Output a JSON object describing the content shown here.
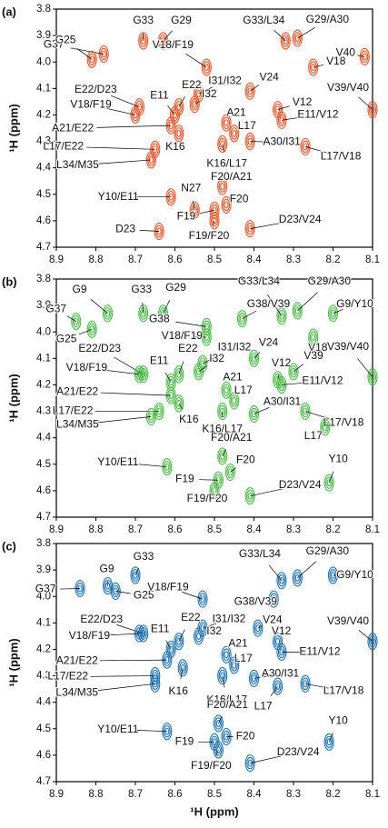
{
  "chart_data": [
    {
      "type": "contour",
      "panel": "(a)",
      "ylabel": "¹H (ppm)",
      "color": "#e4552b",
      "xlim": [
        8.9,
        8.1
      ],
      "ylim": [
        4.7,
        3.8
      ],
      "xticks": [
        8.9,
        8.8,
        8.7,
        8.6,
        8.5,
        8.4,
        8.3,
        8.2,
        8.1
      ],
      "yticks": [
        3.8,
        3.9,
        {
          "value": 4,
          "label": "4.0"
        },
        4.1,
        4.2,
        4.3,
        4.4,
        4.5,
        4.6,
        4.7
      ],
      "labels": [
        "G37",
        "G25",
        "G33",
        "G29",
        "V18/F19",
        "G33/L34",
        "G29/A30",
        "V18",
        "V40",
        "V24",
        "I31/I32",
        "I32",
        "E22",
        "E11",
        "E22/D23",
        "V18/F19",
        "A21/E22",
        "L17/E22",
        "L34/M35",
        "K16",
        "A21",
        "L17",
        "K16/L17",
        "A30/I31",
        "V12",
        "E11/V12",
        "L17/V18",
        "V39/V40",
        "N27",
        "F20/A21",
        "F20",
        "F19",
        "F19/F20",
        "Y10/E11",
        "D23",
        "D23/V24"
      ],
      "x": [
        8.78,
        8.81,
        8.68,
        8.63,
        8.52,
        8.32,
        8.29,
        8.25,
        8.12,
        8.41,
        8.54,
        8.55,
        8.59,
        8.6,
        8.69,
        8.7,
        8.61,
        8.65,
        8.66,
        8.59,
        8.47,
        8.45,
        8.48,
        8.41,
        8.34,
        8.33,
        8.27,
        8.1,
        8.55,
        8.48,
        8.47,
        8.5,
        8.5,
        8.61,
        8.64,
        8.41
      ],
      "y": [
        3.97,
        3.99,
        3.92,
        3.92,
        4.02,
        3.92,
        3.91,
        4.02,
        3.98,
        4.11,
        4.12,
        4.16,
        4.17,
        4.2,
        4.17,
        4.2,
        4.24,
        4.33,
        4.37,
        4.27,
        4.23,
        4.27,
        4.31,
        4.3,
        4.18,
        4.22,
        4.32,
        4.18,
        4.56,
        4.47,
        4.54,
        4.56,
        4.6,
        4.51,
        4.64,
        4.63
      ]
    },
    {
      "type": "contour",
      "panel": "(b)",
      "ylabel": "¹H (ppm)",
      "color": "#4cb848",
      "xlim": [
        8.9,
        8.1
      ],
      "ylim": [
        4.7,
        3.8
      ],
      "xticks": [
        8.9,
        8.8,
        8.7,
        8.6,
        8.5,
        8.4,
        8.3,
        8.2,
        8.1
      ],
      "yticks": [
        3.8,
        3.9,
        {
          "value": 4,
          "label": "4.0"
        },
        4.1,
        4.2,
        4.3,
        4.4,
        4.5,
        4.6,
        4.7
      ],
      "labels": [
        "G37",
        "G9",
        "G25",
        "G33",
        "G29",
        "G38",
        "V18/F19",
        "G33/L34",
        "G29/A30",
        "G38/V39",
        "G9/Y10",
        "V18",
        "V24",
        "I31/I32",
        "I32",
        "E22",
        "E11",
        "E22/D23",
        "V18/F19",
        "A21/E22",
        "L17/E22",
        "L34/M35",
        "K16",
        "A21",
        "L17",
        "K16/L17",
        "A30/I31",
        "V12",
        "V39",
        "E11/V12",
        "L17/V18",
        "V39/V40",
        "L17",
        "Y10",
        "F20/A21",
        "F20",
        "F19",
        "F19/F20",
        "Y10/E11",
        "D23/V24"
      ],
      "x": [
        8.85,
        8.77,
        8.81,
        8.68,
        8.63,
        8.52,
        8.52,
        8.33,
        8.29,
        8.43,
        8.2,
        8.25,
        8.4,
        8.53,
        8.54,
        8.59,
        8.61,
        8.68,
        8.69,
        8.61,
        8.64,
        8.66,
        8.59,
        8.47,
        8.45,
        8.48,
        8.4,
        8.34,
        8.3,
        8.33,
        8.27,
        8.1,
        8.22,
        8.21,
        8.48,
        8.46,
        8.49,
        8.5,
        8.62,
        8.41
      ],
      "y": [
        3.96,
        3.93,
        3.99,
        3.93,
        3.93,
        3.98,
        4.02,
        3.94,
        3.92,
        3.95,
        3.93,
        4.02,
        4.1,
        4.12,
        4.15,
        4.16,
        4.19,
        4.16,
        4.16,
        4.24,
        4.3,
        4.32,
        4.27,
        4.22,
        4.26,
        4.3,
        4.31,
        4.18,
        4.15,
        4.2,
        4.3,
        4.17,
        4.36,
        4.57,
        4.47,
        4.53,
        4.56,
        4.6,
        4.51,
        4.62
      ]
    },
    {
      "type": "contour",
      "panel": "(c)",
      "xlabel": "¹H (ppm)",
      "ylabel": "¹H (ppm)",
      "color": "#1f72b0",
      "xlim": [
        8.9,
        8.1
      ],
      "ylim": [
        4.7,
        3.8
      ],
      "xticks": [
        8.9,
        8.8,
        8.7,
        8.6,
        8.5,
        8.4,
        8.3,
        8.2,
        8.1
      ],
      "yticks": [
        3.8,
        3.9,
        {
          "value": 4,
          "label": "4.0"
        },
        4.1,
        4.2,
        4.3,
        4.4,
        4.5,
        4.6,
        4.7
      ],
      "labels": [
        "G33",
        "G9",
        "G37",
        "G25",
        "V18/F19",
        "G33/L34",
        "G29/A30",
        "G9/Y10",
        "G38/V39",
        "V24",
        "I31/I32",
        "I32",
        "E22",
        "E11",
        "E22/D23",
        "V18/F19",
        "A21/E22",
        "L17/E22",
        "L34/M35",
        "K16",
        "A21",
        "L17",
        "K16/L17",
        "A30/I31",
        "V12",
        "E11/V12",
        "L17/V18",
        "L17",
        "V39/V40",
        "Y10",
        "F20/A21",
        "F20",
        "F19",
        "F19/F20",
        "Y10/E11",
        "D23/V24"
      ],
      "x": [
        8.7,
        8.77,
        8.84,
        8.75,
        8.53,
        8.33,
        8.29,
        8.2,
        8.35,
        8.39,
        8.53,
        8.54,
        8.59,
        8.61,
        8.68,
        8.69,
        8.62,
        8.65,
        8.65,
        8.58,
        8.47,
        8.45,
        8.48,
        8.4,
        8.34,
        8.33,
        8.27,
        8.34,
        8.1,
        8.21,
        8.49,
        8.47,
        8.5,
        8.49,
        8.62,
        8.41
      ],
      "y": [
        3.92,
        3.96,
        3.97,
        3.98,
        4.01,
        3.94,
        3.93,
        3.92,
        4.01,
        4.12,
        4.12,
        4.15,
        4.17,
        4.2,
        4.14,
        4.14,
        4.24,
        4.3,
        4.33,
        4.27,
        4.22,
        4.26,
        4.3,
        4.31,
        4.17,
        4.21,
        4.33,
        4.34,
        4.17,
        4.55,
        4.48,
        4.53,
        4.55,
        4.58,
        4.51,
        4.63
      ]
    }
  ]
}
